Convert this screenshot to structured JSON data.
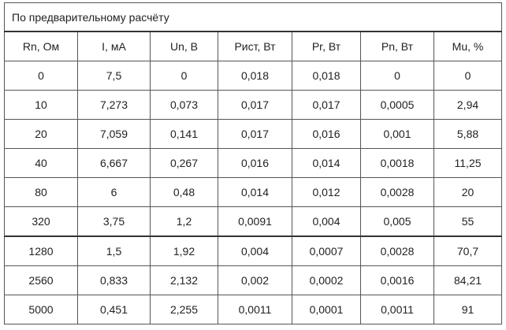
{
  "table": {
    "caption": "По предварительному расчёту",
    "headers": [
      "Rn, Ом",
      "I, мА",
      "Un, В",
      "Рист, Вт",
      "Pr, Вт",
      "Pn, Вт",
      "Mu, %"
    ],
    "rows": [
      [
        "0",
        "7,5",
        "0",
        "0,018",
        "0,018",
        "0",
        "0"
      ],
      [
        "10",
        "7,273",
        "0,073",
        "0,017",
        "0,017",
        "0,0005",
        "2,94"
      ],
      [
        "20",
        "7,059",
        "0,141",
        "0,017",
        "0,016",
        "0,001",
        "5,88"
      ],
      [
        "40",
        "6,667",
        "0,267",
        "0,016",
        "0,014",
        "0,0018",
        "11,25"
      ],
      [
        "80",
        "6",
        "0,48",
        "0,014",
        "0,012",
        "0,0028",
        "20"
      ],
      [
        "320",
        "3,75",
        "1,2",
        "0,0091",
        "0,004",
        "0,005",
        "55"
      ],
      [
        "1280",
        "1,5",
        "1,92",
        "0,004",
        "0,0007",
        "0,0028",
        "70,7"
      ],
      [
        "2560",
        "0,833",
        "2,132",
        "0,002",
        "0,0002",
        "0,0016",
        "84,21"
      ],
      [
        "5000",
        "0,451",
        "2,255",
        "0,0011",
        "0,0001",
        "0,0011",
        "91"
      ]
    ]
  }
}
